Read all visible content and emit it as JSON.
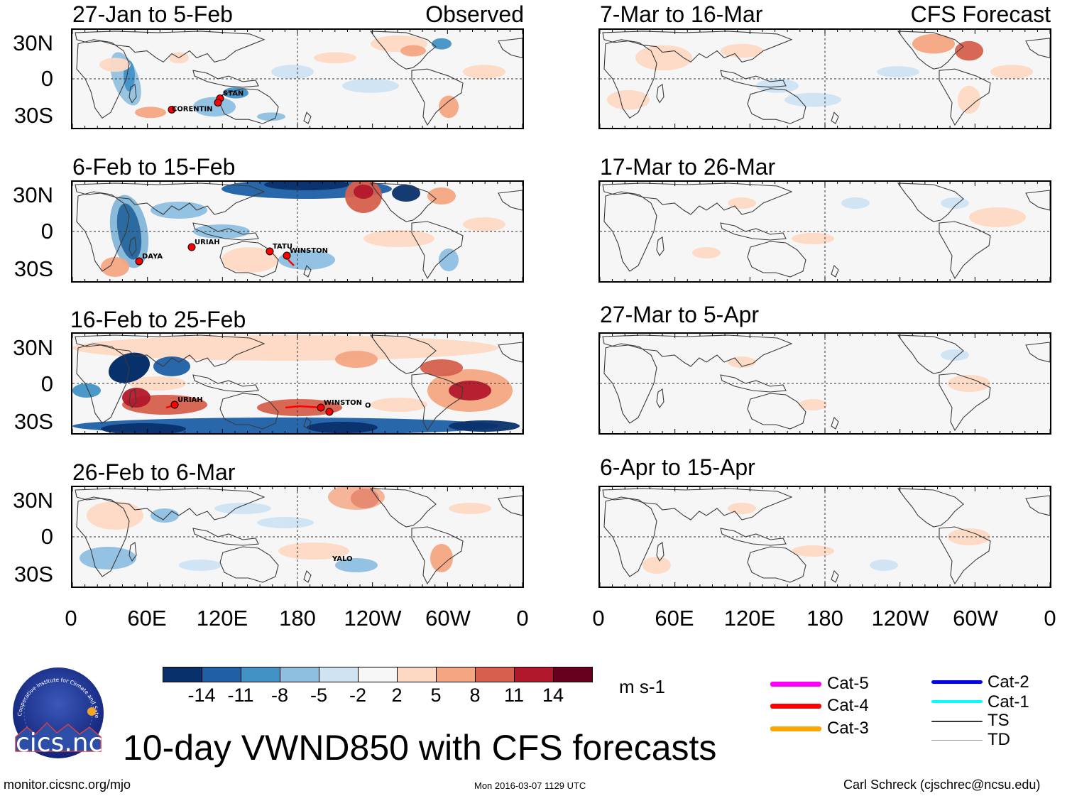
{
  "chart_data": {
    "type": "heatmap",
    "title": "10-day VWND850 with CFS forecasts",
    "units": "m s-1",
    "column_labels": {
      "left": "Observed",
      "right": "CFS Forecast"
    },
    "lat_ticks": [
      "30N",
      "0",
      "30S"
    ],
    "lon_ticks": [
      "0",
      "60E",
      "120E",
      "180",
      "120W",
      "60W",
      "0"
    ],
    "observed_panels": [
      {
        "period": "27-Jan to 5-Feb",
        "storms": [
          "STAN",
          "CORENTIN"
        ]
      },
      {
        "period": "6-Feb to 15-Feb",
        "storms": [
          "URIAH",
          "DAYA",
          "TATU",
          "WINSTON"
        ]
      },
      {
        "period": "16-Feb to 25-Feb",
        "storms": [
          "URIAH",
          "WINSTON",
          "O"
        ]
      },
      {
        "period": "26-Feb to 6-Mar",
        "storms": [
          "YALO"
        ]
      }
    ],
    "forecast_panels": [
      {
        "period": "7-Mar to 16-Mar"
      },
      {
        "period": "17-Mar to 26-Mar"
      },
      {
        "period": "27-Mar to 5-Apr"
      },
      {
        "period": "6-Apr to 15-Apr"
      }
    ],
    "colorbar": {
      "ticks": [
        "-14",
        "-11",
        "-8",
        "-5",
        "-2",
        "2",
        "5",
        "8",
        "11",
        "14"
      ],
      "colors": [
        "#08306b",
        "#1e5fa6",
        "#4292c6",
        "#8ebfe0",
        "#cfe3f2",
        "#f7f7f7",
        "#fdd9c4",
        "#f4a582",
        "#d6604d",
        "#b2182b",
        "#67001f"
      ]
    },
    "storm_legend": [
      {
        "label": "Cat-5",
        "color": "#ff00ff"
      },
      {
        "label": "Cat-4",
        "color": "#ff0000"
      },
      {
        "label": "Cat-3",
        "color": "#ffa500"
      },
      {
        "label": "Cat-2",
        "color": "#0000ee"
      },
      {
        "label": "Cat-1",
        "color": "#00ffff"
      },
      {
        "label": "TS",
        "color": "#333333"
      },
      {
        "label": "TD",
        "color": "#999999"
      }
    ]
  },
  "logo": {
    "text": "cics.nc",
    "ring_text": "Cooperative Institute for Climate and Satellites"
  },
  "footer": {
    "site": "monitor.cicsnc.org/mjo",
    "timestamp": "Mon 2016-03-07 1129 UTC",
    "author": "Carl Schreck (cjschrec@ncsu.edu)"
  }
}
